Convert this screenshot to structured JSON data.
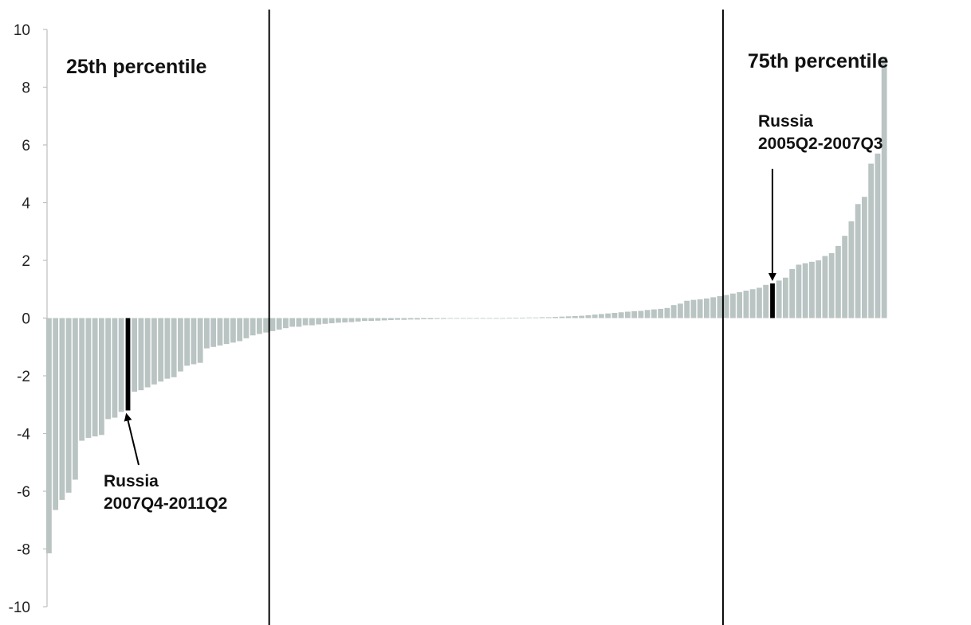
{
  "chart_data": {
    "type": "bar",
    "title": "",
    "xlabel": "",
    "ylabel": "",
    "ylim": [
      -10,
      10
    ],
    "yticks": [
      "10",
      "8",
      "6",
      "4",
      "2",
      "0",
      "-2",
      "-4",
      "-6",
      "-8",
      "-10"
    ],
    "grid": false,
    "legend": "none",
    "colors": {
      "bar": "#b9c4c3",
      "highlight": "#000000",
      "line": "#000000"
    },
    "values": [
      -8.15,
      -6.65,
      -6.3,
      -6.05,
      -5.6,
      -4.25,
      -4.15,
      -4.1,
      -4.05,
      -3.5,
      -3.45,
      -3.25,
      -3.2,
      -2.55,
      -2.5,
      -2.4,
      -2.3,
      -2.2,
      -2.1,
      -2.05,
      -1.85,
      -1.65,
      -1.6,
      -1.55,
      -1.05,
      -1.0,
      -0.95,
      -0.9,
      -0.85,
      -0.8,
      -0.7,
      -0.6,
      -0.55,
      -0.5,
      -0.45,
      -0.4,
      -0.35,
      -0.3,
      -0.3,
      -0.25,
      -0.25,
      -0.22,
      -0.2,
      -0.18,
      -0.16,
      -0.15,
      -0.14,
      -0.12,
      -0.1,
      -0.1,
      -0.09,
      -0.08,
      -0.07,
      -0.06,
      -0.06,
      -0.05,
      -0.05,
      -0.04,
      -0.04,
      -0.03,
      -0.03,
      -0.02,
      -0.02,
      -0.02,
      -0.01,
      -0.01,
      -0.01,
      0.0,
      0.0,
      0.0,
      0.01,
      0.01,
      0.01,
      0.02,
      0.02,
      0.03,
      0.03,
      0.04,
      0.05,
      0.06,
      0.07,
      0.08,
      0.1,
      0.12,
      0.14,
      0.16,
      0.18,
      0.2,
      0.22,
      0.24,
      0.25,
      0.28,
      0.3,
      0.32,
      0.35,
      0.45,
      0.5,
      0.6,
      0.63,
      0.65,
      0.68,
      0.72,
      0.76,
      0.8,
      0.85,
      0.9,
      0.95,
      1.0,
      1.05,
      1.15,
      1.2,
      1.3,
      1.4,
      1.7,
      1.85,
      1.9,
      1.95,
      2.0,
      2.15,
      2.25,
      2.5,
      2.85,
      3.35,
      3.95,
      4.2,
      5.35,
      5.7,
      9.05
    ],
    "highlight": [
      {
        "index": 12,
        "label": [
          "Russia",
          "2007Q4-2011Q2"
        ]
      },
      {
        "index": 110,
        "label": [
          "Russia",
          "2005Q2-2007Q3"
        ]
      }
    ],
    "percentile_lines": [
      {
        "after_index": 33,
        "label": "25th percentile"
      },
      {
        "after_index": 102,
        "label": "75th percentile"
      }
    ]
  }
}
